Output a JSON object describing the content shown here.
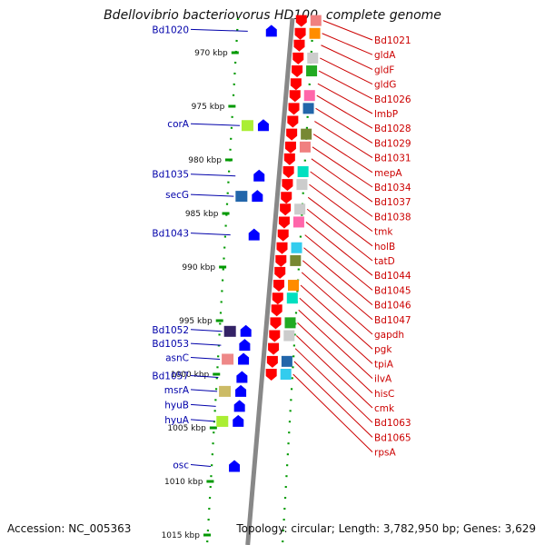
{
  "title": "Bdellovibrio bacteriovorus HD100, complete genome",
  "footer": {
    "accession": "Accession: NC_005363",
    "topology": "Topology: circular; Length: 3,782,950 bp; Genes: 3,629"
  },
  "colors": {
    "forward_label": "#cc0000",
    "reverse_label": "#0000aa",
    "forward_gene": "#ff0000",
    "reverse_gene": "#0000ff",
    "backbone": "#888888",
    "tick": "#009900"
  },
  "scale": {
    "unit": "kbp",
    "ticks": [
      {
        "kbp": 970,
        "label": "970 kbp"
      },
      {
        "kbp": 975,
        "label": "975 kbp"
      },
      {
        "kbp": 980,
        "label": "980 kbp"
      },
      {
        "kbp": 985,
        "label": "985 kbp"
      },
      {
        "kbp": 990,
        "label": "990 kbp"
      },
      {
        "kbp": 995,
        "label": "995 kbp"
      },
      {
        "kbp": 1000,
        "label": "1000 kbp"
      },
      {
        "kbp": 1005,
        "label": "1005 kbp"
      },
      {
        "kbp": 1010,
        "label": "1010 kbp"
      },
      {
        "kbp": 1015,
        "label": "1015 kbp"
      }
    ]
  },
  "forward_genes": [
    {
      "name": "Bd1021",
      "kbp": 967.0
    },
    {
      "name": "gldA",
      "kbp": 968.2
    },
    {
      "name": "gldF",
      "kbp": 969.3
    },
    {
      "name": "gldG",
      "kbp": 970.5
    },
    {
      "name": "Bd1026",
      "kbp": 971.7
    },
    {
      "name": "lmbP",
      "kbp": 972.9
    },
    {
      "name": "Bd1028",
      "kbp": 974.0
    },
    {
      "name": "Bd1029",
      "kbp": 975.2
    },
    {
      "name": "Bd1031",
      "kbp": 976.4
    },
    {
      "name": "mepA",
      "kbp": 977.6
    },
    {
      "name": "Bd1034",
      "kbp": 978.8
    },
    {
      "name": "Bd1037",
      "kbp": 979.9
    },
    {
      "name": "Bd1038",
      "kbp": 981.1
    },
    {
      "name": "tmk",
      "kbp": 982.3
    },
    {
      "name": "holB",
      "kbp": 983.5
    },
    {
      "name": "tatD",
      "kbp": 984.6
    },
    {
      "name": "Bd1044",
      "kbp": 985.8
    },
    {
      "name": "Bd1045",
      "kbp": 987.0
    },
    {
      "name": "Bd1046",
      "kbp": 988.2
    },
    {
      "name": "Bd1047",
      "kbp": 989.4
    },
    {
      "name": "gapdh",
      "kbp": 990.5
    },
    {
      "name": "pgk",
      "kbp": 991.7
    },
    {
      "name": "tpiA",
      "kbp": 992.9
    },
    {
      "name": "ilvA",
      "kbp": 994.0
    },
    {
      "name": "hisC",
      "kbp": 995.2
    },
    {
      "name": "cmk",
      "kbp": 996.4
    },
    {
      "name": "Bd1063",
      "kbp": 997.6
    },
    {
      "name": "Bd1065",
      "kbp": 998.8
    },
    {
      "name": "rpsA",
      "kbp": 1000.0
    }
  ],
  "reverse_genes": [
    {
      "name": "Bd1020",
      "kbp": 968.0
    },
    {
      "name": "corA",
      "kbp": 976.8
    },
    {
      "name": "Bd1035",
      "kbp": 981.5
    },
    {
      "name": "secG",
      "kbp": 983.4
    },
    {
      "name": "Bd1043",
      "kbp": 987.0
    },
    {
      "name": "Bd1052",
      "kbp": 996.0
    },
    {
      "name": "Bd1053",
      "kbp": 997.3
    },
    {
      "name": "asnC",
      "kbp": 998.6
    },
    {
      "name": "Bd1057",
      "kbp": 1000.3
    },
    {
      "name": "msrA",
      "kbp": 1001.6
    },
    {
      "name": "hyuB",
      "kbp": 1003.0
    },
    {
      "name": "hyuA",
      "kbp": 1004.4
    },
    {
      "name": "osc",
      "kbp": 1008.6
    }
  ]
}
